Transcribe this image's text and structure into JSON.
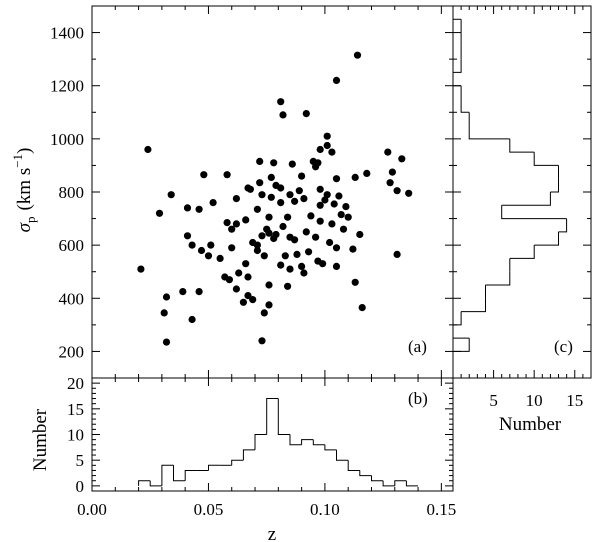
{
  "chart_data": [
    {
      "panel": "(a)",
      "type": "scatter",
      "xlabel": "",
      "ylabel_symbol": "σ",
      "ylabel_subscript": "p",
      "ylabel_units": "(km s",
      "ylabel_units_exp": "−1",
      "ylabel_units_close": ")",
      "xlim": [
        0.0,
        0.155
      ],
      "ylim": [
        100,
        1500
      ],
      "yticks": [
        200,
        400,
        600,
        800,
        1000,
        1200,
        1400
      ],
      "points": [
        [
          0.114,
          1315
        ],
        [
          0.105,
          1220
        ],
        [
          0.081,
          1140
        ],
        [
          0.082,
          1090
        ],
        [
          0.092,
          1095
        ],
        [
          0.101,
          1010
        ],
        [
          0.098,
          960
        ],
        [
          0.101,
          975
        ],
        [
          0.024,
          960
        ],
        [
          0.103,
          950
        ],
        [
          0.127,
          950
        ],
        [
          0.133,
          925
        ],
        [
          0.095,
          915
        ],
        [
          0.097,
          910
        ],
        [
          0.072,
          915
        ],
        [
          0.078,
          910
        ],
        [
          0.086,
          905
        ],
        [
          0.096,
          895
        ],
        [
          0.129,
          875
        ],
        [
          0.118,
          870
        ],
        [
          0.048,
          865
        ],
        [
          0.058,
          865
        ],
        [
          0.09,
          860
        ],
        [
          0.077,
          855
        ],
        [
          0.105,
          850
        ],
        [
          0.113,
          855
        ],
        [
          0.128,
          835
        ],
        [
          0.072,
          835
        ],
        [
          0.079,
          825
        ],
        [
          0.081,
          815
        ],
        [
          0.067,
          815
        ],
        [
          0.068,
          810
        ],
        [
          0.098,
          810
        ],
        [
          0.089,
          805
        ],
        [
          0.136,
          795
        ],
        [
          0.131,
          805
        ],
        [
          0.085,
          790
        ],
        [
          0.073,
          790
        ],
        [
          0.101,
          790
        ],
        [
          0.034,
          790
        ],
        [
          0.106,
          785
        ],
        [
          0.077,
          780
        ],
        [
          0.091,
          775
        ],
        [
          0.062,
          775
        ],
        [
          0.1,
          770
        ],
        [
          0.087,
          765
        ],
        [
          0.052,
          760
        ],
        [
          0.081,
          760
        ],
        [
          0.104,
          755
        ],
        [
          0.098,
          750
        ],
        [
          0.109,
          745
        ],
        [
          0.041,
          740
        ],
        [
          0.046,
          735
        ],
        [
          0.071,
          735
        ],
        [
          0.029,
          720
        ],
        [
          0.107,
          715
        ],
        [
          0.094,
          710
        ],
        [
          0.084,
          705
        ],
        [
          0.076,
          705
        ],
        [
          0.11,
          705
        ],
        [
          0.066,
          695
        ],
        [
          0.098,
          690
        ],
        [
          0.058,
          685
        ],
        [
          0.062,
          680
        ],
        [
          0.103,
          680
        ],
        [
          0.06,
          660
        ],
        [
          0.082,
          670
        ],
        [
          0.075,
          660
        ],
        [
          0.108,
          660
        ],
        [
          0.092,
          650
        ],
        [
          0.076,
          645
        ],
        [
          0.079,
          640
        ],
        [
          0.073,
          635
        ],
        [
          0.115,
          640
        ],
        [
          0.085,
          630
        ],
        [
          0.041,
          635
        ],
        [
          0.096,
          630
        ],
        [
          0.078,
          625
        ],
        [
          0.087,
          620
        ],
        [
          0.043,
          600
        ],
        [
          0.069,
          610
        ],
        [
          0.102,
          610
        ],
        [
          0.071,
          600
        ],
        [
          0.051,
          600
        ],
        [
          0.06,
          590
        ],
        [
          0.105,
          590
        ],
        [
          0.112,
          585
        ],
        [
          0.047,
          580
        ],
        [
          0.071,
          580
        ],
        [
          0.093,
          575
        ],
        [
          0.088,
          565
        ],
        [
          0.05,
          560
        ],
        [
          0.074,
          560
        ],
        [
          0.131,
          565
        ],
        [
          0.083,
          560
        ],
        [
          0.055,
          550
        ],
        [
          0.097,
          540
        ],
        [
          0.099,
          530
        ],
        [
          0.066,
          530
        ],
        [
          0.081,
          525
        ],
        [
          0.021,
          510
        ],
        [
          0.09,
          520
        ],
        [
          0.105,
          520
        ],
        [
          0.085,
          510
        ],
        [
          0.063,
          495
        ],
        [
          0.091,
          495
        ],
        [
          0.057,
          480
        ],
        [
          0.067,
          480
        ],
        [
          0.059,
          470
        ],
        [
          0.113,
          460
        ],
        [
          0.076,
          450
        ],
        [
          0.084,
          445
        ],
        [
          0.062,
          435
        ],
        [
          0.039,
          425
        ],
        [
          0.046,
          425
        ],
        [
          0.067,
          410
        ],
        [
          0.032,
          405
        ],
        [
          0.069,
          395
        ],
        [
          0.065,
          385
        ],
        [
          0.076,
          375
        ],
        [
          0.116,
          365
        ],
        [
          0.031,
          345
        ],
        [
          0.074,
          345
        ],
        [
          0.043,
          320
        ],
        [
          0.073,
          240
        ],
        [
          0.032,
          235
        ]
      ]
    },
    {
      "panel": "(b)",
      "type": "bar",
      "histogram": true,
      "xlabel": "z",
      "ylabel": "Number",
      "xlim": [
        0.0,
        0.155
      ],
      "ylim": [
        -1,
        21
      ],
      "xticks": [
        0.0,
        0.05,
        0.1,
        0.15
      ],
      "xtick_labels": [
        "0.00",
        "0.05",
        "0.10",
        "0.15"
      ],
      "yticks": [
        0,
        5,
        10,
        15,
        20
      ],
      "bin_edges": [
        0.02,
        0.025,
        0.03,
        0.035,
        0.04,
        0.045,
        0.05,
        0.055,
        0.06,
        0.065,
        0.07,
        0.075,
        0.08,
        0.085,
        0.09,
        0.095,
        0.1,
        0.105,
        0.11,
        0.115,
        0.12,
        0.125,
        0.13,
        0.135,
        0.14
      ],
      "values": [
        1,
        0,
        4,
        1,
        3,
        3,
        4,
        4,
        5,
        7,
        10,
        17,
        10,
        8,
        9,
        8,
        7,
        5,
        3,
        2,
        1,
        0,
        1,
        0
      ]
    },
    {
      "panel": "(c)",
      "type": "bar",
      "histogram": true,
      "orientation": "horizontal",
      "xlabel": "Number",
      "xlim": [
        0,
        17
      ],
      "xticks": [
        5,
        10,
        15
      ],
      "ylim": [
        100,
        1500
      ],
      "bin_edges": [
        200,
        250,
        300,
        350,
        400,
        450,
        500,
        550,
        600,
        650,
        700,
        750,
        800,
        850,
        900,
        950,
        1000,
        1050,
        1100,
        1150,
        1200,
        1250,
        1300,
        1350,
        1400,
        1450
      ],
      "values": [
        2,
        0,
        1,
        4,
        4,
        7,
        7,
        10,
        13,
        14,
        6,
        12,
        13,
        13,
        10,
        7,
        2,
        2,
        1,
        1,
        0,
        1,
        1,
        1,
        1
      ]
    }
  ]
}
